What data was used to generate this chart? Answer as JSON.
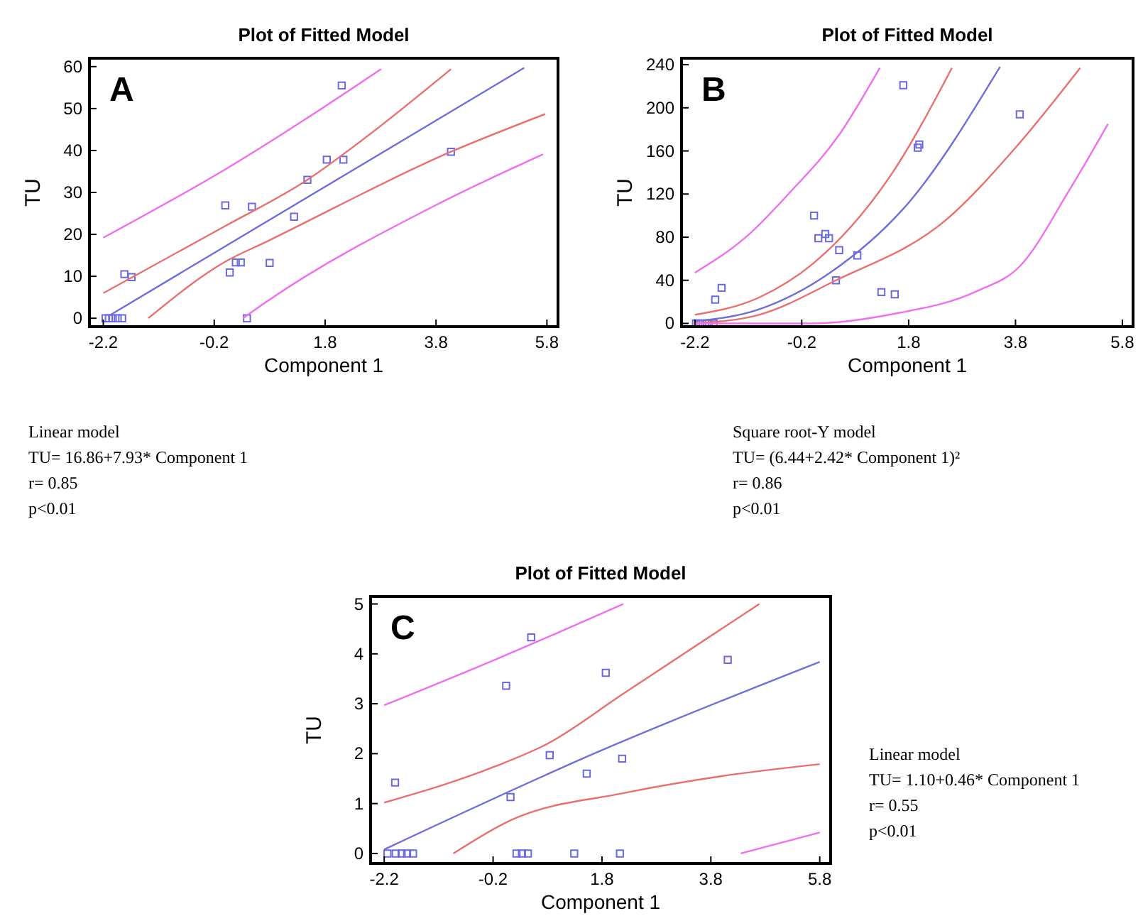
{
  "chart_data": [
    {
      "type": "scatter",
      "title": "Plot of Fitted Model",
      "xlabel": "Component 1",
      "ylabel": "TU",
      "xlim": [
        -2.45,
        6.0
      ],
      "ylim": [
        -2,
        62
      ],
      "xticks": [
        -2.2,
        -0.2,
        1.8,
        3.8,
        5.8
      ],
      "yticks": [
        0,
        10,
        20,
        30,
        40,
        50,
        60
      ],
      "annotations": [
        "A",
        "Linear model",
        "TU= 16.86+7.93* Component 1",
        "r= 0.85",
        "p<0.01"
      ],
      "series": [
        {
          "marker": "square",
          "color": "#6a6ae0",
          "x": [
            -2.16,
            -2.1,
            -2.03,
            -1.94,
            -1.86,
            -1.82,
            -1.69,
            0.0,
            0.08,
            0.19,
            0.28,
            0.48,
            0.8,
            0.39,
            1.24,
            1.48,
            1.83,
            2.13,
            2.1,
            4.07
          ],
          "values": [
            0,
            0,
            0,
            0,
            0,
            10.5,
            9.8,
            26.9,
            10.9,
            13.3,
            13.3,
            26.6,
            13.2,
            0,
            24.2,
            33,
            37.8,
            37.8,
            55.5,
            39.7
          ]
        },
        {
          "type": "line",
          "color": "#6f6fd8",
          "x": [
            -2.11,
            5.39
          ],
          "values": [
            0.5,
            59.7
          ]
        },
        {
          "type": "line",
          "color": "#e87070",
          "x": [
            -2.2,
            0,
            1.48,
            2.5,
            4.07
          ],
          "values": [
            6,
            22,
            33,
            42.8,
            59.4
          ]
        },
        {
          "type": "line",
          "color": "#e87070",
          "x": [
            -1.39,
            0,
            0.75,
            4.07,
            5.77
          ],
          "values": [
            0,
            13.5,
            18.3,
            39.7,
            48.7
          ]
        },
        {
          "type": "line",
          "color": "#ee70ee",
          "x": [
            -2.2,
            0,
            2.81
          ],
          "values": [
            19.2,
            35.5,
            59.4
          ]
        },
        {
          "type": "line",
          "color": "#ee70ee",
          "x": [
            0.32,
            0.75,
            3.8,
            5.73
          ],
          "values": [
            0,
            4,
            27,
            39.1
          ]
        }
      ]
    },
    {
      "type": "scatter",
      "title": "Plot of Fitted Model",
      "xlabel": "Component 1",
      "ylabel": "TU",
      "xlim": [
        -2.45,
        6.0
      ],
      "ylim": [
        -3,
        246
      ],
      "xticks": [
        -2.2,
        -0.2,
        1.8,
        3.8,
        5.8
      ],
      "yticks": [
        0,
        40,
        80,
        120,
        160,
        200,
        240
      ],
      "annotations": [
        "B",
        "Square root-Y model",
        "TU= (6.44+2.42* Component 1)²",
        "r= 0.86",
        "p<0.01"
      ],
      "series": [
        {
          "marker": "square",
          "color": "#6a6ae0",
          "x": [
            -2.18,
            -2.1,
            -2.01,
            -1.94,
            -1.85,
            -1.82,
            -1.7,
            0.03,
            0.11,
            0.24,
            0.31,
            0.5,
            0.44,
            0.84,
            1.29,
            1.54,
            1.7,
            1.97,
            2.0,
            3.88
          ],
          "values": [
            0,
            0,
            0,
            0,
            0,
            22,
            33,
            100,
            79,
            83,
            79,
            68,
            40,
            63,
            29,
            27,
            221,
            163,
            166,
            194
          ]
        },
        {
          "type": "line",
          "color": "#6f6fd8",
          "x": [
            -2.2,
            -1,
            0.33,
            1.8,
            3.51
          ],
          "values": [
            2,
            13,
            47,
            112,
            238
          ]
        },
        {
          "type": "line",
          "color": "#e87070",
          "x": [
            -2.2,
            -1,
            0,
            1.5,
            2.61
          ],
          "values": [
            8,
            24,
            55,
            140,
            237
          ]
        },
        {
          "type": "line",
          "color": "#e87070",
          "x": [
            -2.2,
            -1,
            0.44,
            2.5,
            3.8,
            5.01
          ],
          "values": [
            0,
            8,
            40,
            96,
            163,
            237
          ]
        },
        {
          "type": "line",
          "color": "#ee70ee",
          "x": [
            -2.2,
            -1.2,
            -0.45,
            0.5,
            1.26
          ],
          "values": [
            47,
            82,
            120,
            175,
            237
          ]
        },
        {
          "type": "line",
          "color": "#ee70ee",
          "x": [
            -2.2,
            0,
            1.54,
            3.08,
            3.88,
            4.8,
            5.53
          ],
          "values": [
            0,
            0,
            9,
            30,
            53,
            123,
            185
          ]
        }
      ]
    },
    {
      "type": "scatter",
      "title": "Plot of Fitted Model",
      "xlabel": "Component 1",
      "ylabel": "TU",
      "xlim": [
        -2.45,
        6.0
      ],
      "ylim": [
        -0.2,
        5.15
      ],
      "xticks": [
        -2.2,
        -0.2,
        1.8,
        3.8,
        5.8
      ],
      "yticks": [
        0,
        1,
        2,
        3,
        4,
        5
      ],
      "annotations": [
        "C",
        "Linear model",
        "TU= 1.10+0.46* Component 1",
        "r= 0.55",
        "p<0.01"
      ],
      "series": [
        {
          "marker": "square",
          "color": "#6a6ae0",
          "x": [
            -2.14,
            -1.99,
            -1.88,
            -1.78,
            -1.67,
            -2.0,
            0.04,
            0.5,
            0.12,
            0.84,
            0.23,
            0.33,
            0.44,
            1.29,
            1.52,
            1.87,
            2.17,
            2.13,
            4.11
          ],
          "values": [
            0,
            0,
            0,
            0,
            0,
            1.42,
            3.36,
            4.33,
            1.13,
            1.97,
            0,
            0,
            0,
            0,
            1.6,
            3.62,
            1.9,
            0,
            3.88
          ]
        },
        {
          "type": "line",
          "color": "#6f6fd8",
          "x": [
            -2.2,
            1.8,
            5.8
          ],
          "values": [
            0.08,
            2.07,
            3.84
          ]
        },
        {
          "type": "line",
          "color": "#e87070",
          "x": [
            -2.2,
            -0.15,
            0.8,
            2.19,
            4.69
          ],
          "values": [
            1.02,
            1.75,
            2.2,
            3.2,
            5.0
          ]
        },
        {
          "type": "line",
          "color": "#e87070",
          "x": [
            -0.93,
            0.11,
            2.2,
            4.0,
            5.8
          ],
          "values": [
            0,
            0.66,
            1.21,
            1.55,
            1.79
          ]
        },
        {
          "type": "line",
          "color": "#ee70ee",
          "x": [
            -2.2,
            -0.15,
            2.19
          ],
          "values": [
            2.97,
            3.89,
            5.0
          ]
        },
        {
          "type": "line",
          "color": "#ee70ee",
          "x": [
            4.35,
            5.8
          ],
          "values": [
            0,
            0.42
          ]
        }
      ]
    }
  ]
}
